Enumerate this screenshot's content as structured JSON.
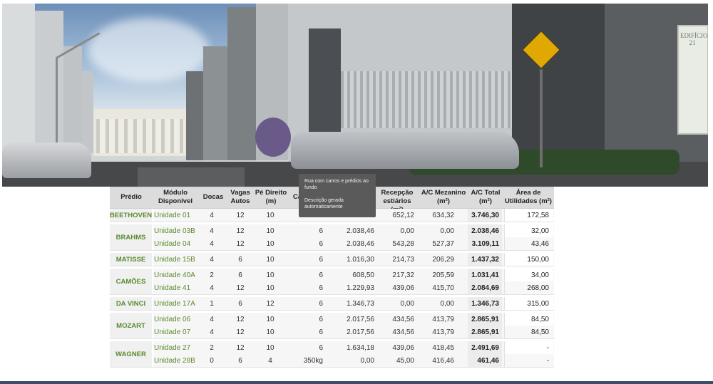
{
  "photo": {
    "building_sign": "EDIFÍCIO 21"
  },
  "tooltip": {
    "line1": "Rua com carros e prédios ao fundo",
    "line2": "Descrição gerada automaticamente"
  },
  "table": {
    "headers": {
      "predio": "Prédio",
      "modulo": "Módulo Disponível",
      "docas": "Docas",
      "vagas": "Vagas Autos",
      "pe": "Pé Direito (m)",
      "carga": "Ca",
      "recepcao": "Recepção estiários (m²)",
      "mezanino": "A/C Mezanino (m²)",
      "total": "A/C Total (m²)",
      "util": "Área de Utilidades (m²)"
    },
    "groups": [
      {
        "name": "BEETHOVEN",
        "rows": [
          {
            "unit": "Unidade 01",
            "docas": "4",
            "vagas": "12",
            "pe": "10",
            "carga": "",
            "area": "",
            "rec": "652,12",
            "mez": "634,32",
            "total": "3.746,30",
            "util": "172,58"
          }
        ]
      },
      {
        "name": "BRAHMS",
        "rows": [
          {
            "unit": "Unidade 03B",
            "docas": "4",
            "vagas": "12",
            "pe": "10",
            "carga": "6",
            "area": "2.038,46",
            "rec": "0,00",
            "mez": "0,00",
            "total": "2.038,46",
            "util": "32,00"
          },
          {
            "unit": "Unidade 04",
            "docas": "4",
            "vagas": "12",
            "pe": "10",
            "carga": "6",
            "area": "2.038,46",
            "rec": "543,28",
            "mez": "527,37",
            "total": "3.109,11",
            "util": "43,46"
          }
        ]
      },
      {
        "name": "MATISSE",
        "rows": [
          {
            "unit": "Unidade 15B",
            "docas": "4",
            "vagas": "6",
            "pe": "10",
            "carga": "6",
            "area": "1.016,30",
            "rec": "214,73",
            "mez": "206,29",
            "total": "1.437,32",
            "util": "150,00"
          }
        ]
      },
      {
        "name": "CAMÕES",
        "rows": [
          {
            "unit": "Unidade 40A",
            "docas": "2",
            "vagas": "6",
            "pe": "10",
            "carga": "6",
            "area": "608,50",
            "rec": "217,32",
            "mez": "205,59",
            "total": "1.031,41",
            "util": "34,00"
          },
          {
            "unit": "Unidade 41",
            "docas": "4",
            "vagas": "12",
            "pe": "10",
            "carga": "6",
            "area": "1.229,93",
            "rec": "439,06",
            "mez": "415,70",
            "total": "2.084,69",
            "util": "268,00"
          }
        ]
      },
      {
        "name": "DA VINCI",
        "rows": [
          {
            "unit": "Unidade 17A",
            "docas": "1",
            "vagas": "6",
            "pe": "12",
            "carga": "6",
            "area": "1.346,73",
            "rec": "0,00",
            "mez": "0,00",
            "total": "1.346,73",
            "util": "315,00"
          }
        ]
      },
      {
        "name": "MOZART",
        "rows": [
          {
            "unit": "Unidade 06",
            "docas": "4",
            "vagas": "12",
            "pe": "10",
            "carga": "6",
            "area": "2.017,56",
            "rec": "434,56",
            "mez": "413,79",
            "total": "2.865,91",
            "util": "84,50"
          },
          {
            "unit": "Unidade 07",
            "docas": "4",
            "vagas": "12",
            "pe": "10",
            "carga": "6",
            "area": "2.017,56",
            "rec": "434,56",
            "mez": "413,79",
            "total": "2.865,91",
            "util": "84,50"
          }
        ]
      },
      {
        "name": "WAGNER",
        "rows": [
          {
            "unit": "Unidade 27",
            "docas": "2",
            "vagas": "12",
            "pe": "10",
            "carga": "6",
            "area": "1.634,18",
            "rec": "439,06",
            "mez": "418,45",
            "total": "2.491,69",
            "util": "-"
          },
          {
            "unit": "Unidade 28B",
            "docas": "0",
            "vagas": "6",
            "pe": "4",
            "carga": "350kg",
            "area": "0,00",
            "rec": "45,00",
            "mez": "416,46",
            "total": "461,46",
            "util": "-"
          }
        ]
      }
    ]
  }
}
